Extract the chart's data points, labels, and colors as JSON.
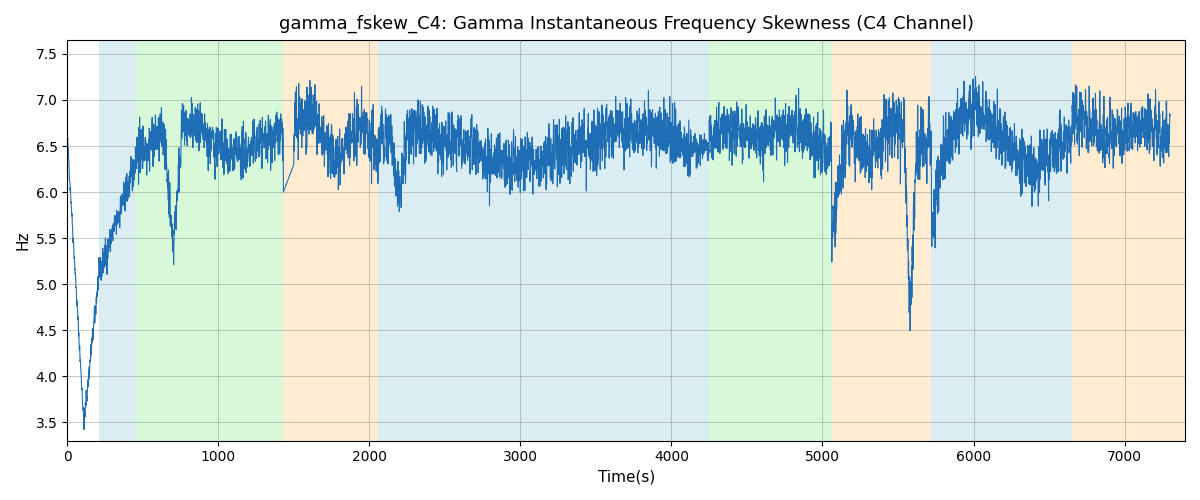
{
  "title": "gamma_fskew_C4: Gamma Instantaneous Frequency Skewness (C4 Channel)",
  "xlabel": "Time(s)",
  "ylabel": "Hz",
  "ylim": [
    3.3,
    7.65
  ],
  "xlim": [
    0,
    7400
  ],
  "line_color": "#1f6eb5",
  "line_width": 0.8,
  "bg_regions": [
    {
      "xmin": 210,
      "xmax": 450,
      "color": "#add8e6",
      "alpha": 0.45
    },
    {
      "xmin": 450,
      "xmax": 1430,
      "color": "#90ee90",
      "alpha": 0.35
    },
    {
      "xmin": 1430,
      "xmax": 2060,
      "color": "#ffd59a",
      "alpha": 0.45
    },
    {
      "xmin": 2060,
      "xmax": 4130,
      "color": "#add8e6",
      "alpha": 0.45
    },
    {
      "xmin": 4130,
      "xmax": 4250,
      "color": "#add8e6",
      "alpha": 0.45
    },
    {
      "xmin": 4250,
      "xmax": 5060,
      "color": "#90ee90",
      "alpha": 0.35
    },
    {
      "xmin": 5060,
      "xmax": 5720,
      "color": "#ffd59a",
      "alpha": 0.45
    },
    {
      "xmin": 5720,
      "xmax": 6650,
      "color": "#add8e6",
      "alpha": 0.45
    },
    {
      "xmin": 6650,
      "xmax": 7400,
      "color": "#ffd59a",
      "alpha": 0.45
    }
  ],
  "yticks": [
    3.5,
    4.0,
    4.5,
    5.0,
    5.5,
    6.0,
    6.5,
    7.0,
    7.5
  ],
  "xticks": [
    0,
    1000,
    2000,
    3000,
    4000,
    5000,
    6000,
    7000
  ],
  "figsize": [
    12,
    5
  ],
  "dpi": 100,
  "seed": 42
}
